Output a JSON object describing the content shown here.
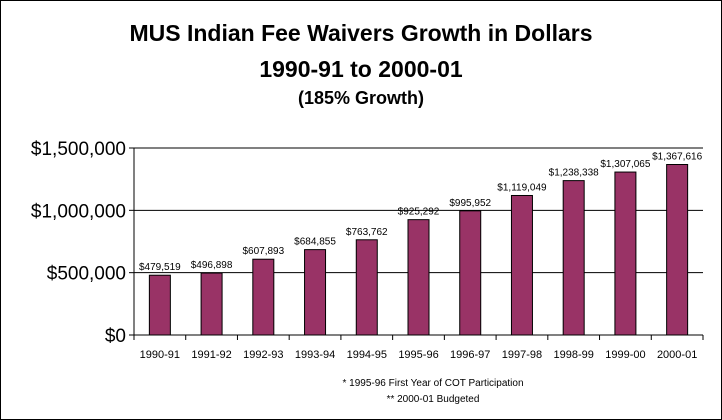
{
  "titles": {
    "line1": "MUS Indian Fee Waivers Growth in Dollars",
    "line2": "1990-91 to 2000-01",
    "line3": "(185% Growth)"
  },
  "footnotes": {
    "note1": "* 1995-96 First Year of COT Participation",
    "note2": "** 2000-01 Budgeted"
  },
  "colors": {
    "bar": "#993366",
    "grid": "#000000",
    "axis": "#000000"
  },
  "chart_data": {
    "type": "bar",
    "title": "MUS Indian Fee Waivers Growth in Dollars",
    "subtitle": "1990-91 to 2000-01 (185% Growth)",
    "xlabel": "",
    "ylabel": "",
    "categories": [
      "1990-91",
      "1991-92",
      "1992-93",
      "1993-94",
      "1994-95",
      "1995-96",
      "1996-97",
      "1997-98",
      "1998-99",
      "1999-00",
      "2000-01"
    ],
    "values": [
      479519,
      496898,
      607893,
      684855,
      763762,
      925292,
      995952,
      1119049,
      1238338,
      1307065,
      1367616
    ],
    "data_labels": [
      "$479,519",
      "$496,898",
      "$607,893",
      "$684,855",
      "$763,762",
      "$925,292",
      "$995,952",
      "$1,119,049",
      "$1,238,338",
      "$1,307,065",
      "$1,367,616"
    ],
    "ylim": [
      0,
      1500000
    ],
    "y_ticks": [
      0,
      500000,
      1000000,
      1500000
    ],
    "y_tick_labels": [
      "$0",
      "$500,000",
      "$1,000,000",
      "$1,500,000"
    ],
    "grid": true,
    "legend": "none"
  }
}
